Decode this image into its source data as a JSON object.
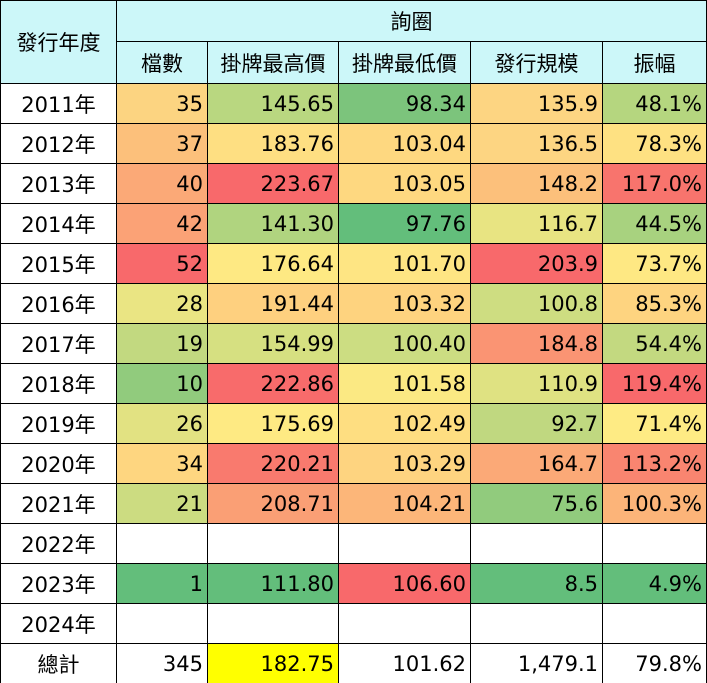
{
  "table": {
    "header": {
      "year": "發行年度",
      "group": "詢圈",
      "columns": [
        "檔數",
        "掛牌最高價",
        "掛牌最低價",
        "發行規模",
        "振幅"
      ]
    },
    "rows": [
      [
        "2011年",
        "35",
        "145.65",
        "98.34",
        "135.9",
        "48.1%"
      ],
      [
        "2012年",
        "37",
        "183.76",
        "103.04",
        "136.5",
        "78.3%"
      ],
      [
        "2013年",
        "40",
        "223.67",
        "103.05",
        "148.2",
        "117.0%"
      ],
      [
        "2014年",
        "42",
        "141.30",
        "97.76",
        "116.7",
        "44.5%"
      ],
      [
        "2015年",
        "52",
        "176.64",
        "101.70",
        "203.9",
        "73.7%"
      ],
      [
        "2016年",
        "28",
        "191.44",
        "103.32",
        "100.8",
        "85.3%"
      ],
      [
        "2017年",
        "19",
        "154.99",
        "100.40",
        "184.8",
        "54.4%"
      ],
      [
        "2018年",
        "10",
        "222.86",
        "101.58",
        "110.9",
        "119.4%"
      ],
      [
        "2019年",
        "26",
        "175.69",
        "102.49",
        "92.7",
        "71.4%"
      ],
      [
        "2020年",
        "34",
        "220.21",
        "103.29",
        "164.7",
        "113.2%"
      ],
      [
        "2021年",
        "21",
        "208.71",
        "104.21",
        "75.6",
        "100.3%"
      ],
      [
        "2022年"
      ],
      [
        "2023年",
        "1",
        "111.80",
        "106.60",
        "8.5",
        "4.9%"
      ],
      [
        "2024年"
      ],
      [
        "總計",
        "345",
        "182.75",
        "101.62",
        "1,479.1",
        "79.8%"
      ]
    ]
  }
}
